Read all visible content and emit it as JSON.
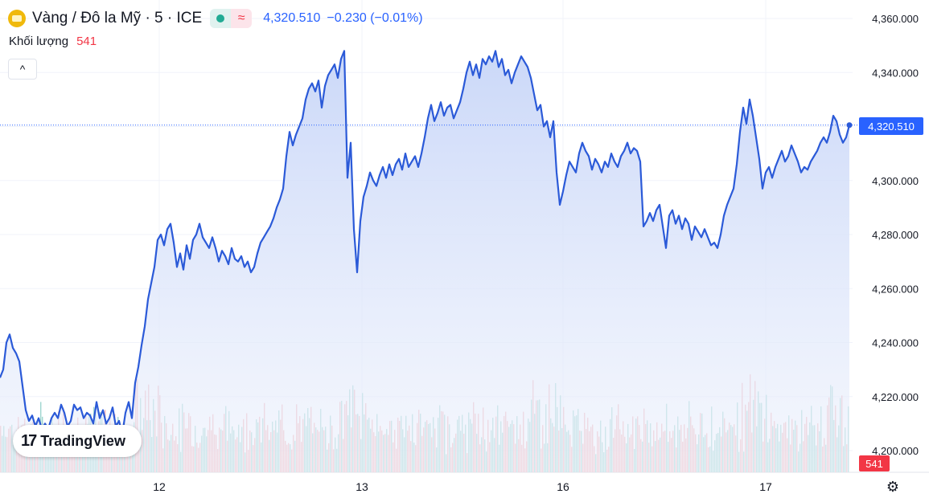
{
  "header": {
    "symbol": "Vàng / Đô la Mỹ · 5 · ICE",
    "status_approx": "≈",
    "price": "4,320.510",
    "change": "−0.230 (−0.01%)"
  },
  "volume": {
    "label": "Khối lượng",
    "value": "541"
  },
  "collapse_icon": "^",
  "logo": {
    "mark": "17",
    "brand": "TradingView"
  },
  "colors": {
    "line": "#2b5ad8",
    "fill_top": "#c9d7f7",
    "volume_up": "#8ecfc7",
    "volume_down": "#f2a7ab",
    "label_bg": "#2962ff",
    "volume_label_bg": "#f23645"
  },
  "chart_data": {
    "type": "area",
    "title": "Vàng / Đô la Mỹ · 5 · ICE",
    "x_labels": [
      "12",
      "13",
      "16",
      "17"
    ],
    "y_ticks": [
      4200,
      4220,
      4240,
      4260,
      4280,
      4300,
      4320,
      4340,
      4360
    ],
    "y_tick_labels": [
      "4,200.000",
      "4,220.000",
      "4,240.000",
      "4,260.000",
      "4,280.000",
      "4,300.000",
      "4,320.000",
      "4,340.000",
      "4,360.000"
    ],
    "ylim": [
      4195,
      4362
    ],
    "current_price": 4320.51,
    "current_price_label": "4,320.510",
    "volume_label": "541",
    "keypoints": [
      [
        0,
        4227
      ],
      [
        4,
        4230
      ],
      [
        8,
        4240
      ],
      [
        12,
        4243
      ],
      [
        16,
        4238
      ],
      [
        20,
        4236
      ],
      [
        24,
        4233
      ],
      [
        28,
        4224
      ],
      [
        32,
        4215
      ],
      [
        36,
        4211
      ],
      [
        40,
        4213
      ],
      [
        44,
        4209
      ],
      [
        48,
        4212
      ],
      [
        52,
        4208
      ],
      [
        56,
        4210
      ],
      [
        60,
        4208
      ],
      [
        64,
        4212
      ],
      [
        68,
        4214
      ],
      [
        72,
        4212
      ],
      [
        76,
        4217
      ],
      [
        80,
        4214
      ],
      [
        84,
        4209
      ],
      [
        88,
        4211
      ],
      [
        92,
        4217
      ],
      [
        96,
        4215
      ],
      [
        100,
        4216
      ],
      [
        104,
        4212
      ],
      [
        108,
        4214
      ],
      [
        112,
        4213
      ],
      [
        116,
        4210
      ],
      [
        120,
        4218
      ],
      [
        124,
        4212
      ],
      [
        128,
        4215
      ],
      [
        132,
        4210
      ],
      [
        136,
        4212
      ],
      [
        140,
        4216
      ],
      [
        144,
        4209
      ],
      [
        148,
        4211
      ],
      [
        152,
        4206
      ],
      [
        156,
        4214
      ],
      [
        160,
        4218
      ],
      [
        164,
        4212
      ],
      [
        168,
        4225
      ],
      [
        172,
        4231
      ],
      [
        176,
        4239
      ],
      [
        180,
        4246
      ],
      [
        184,
        4256
      ],
      [
        188,
        4262
      ],
      [
        192,
        4268
      ],
      [
        196,
        4278
      ],
      [
        200,
        4280
      ],
      [
        204,
        4276
      ],
      [
        208,
        4282
      ],
      [
        212,
        4284
      ],
      [
        216,
        4277
      ],
      [
        220,
        4268
      ],
      [
        224,
        4273
      ],
      [
        228,
        4267
      ],
      [
        232,
        4276
      ],
      [
        236,
        4271
      ],
      [
        240,
        4278
      ],
      [
        244,
        4280
      ],
      [
        248,
        4284
      ],
      [
        252,
        4279
      ],
      [
        256,
        4277
      ],
      [
        260,
        4275
      ],
      [
        264,
        4279
      ],
      [
        268,
        4275
      ],
      [
        272,
        4270
      ],
      [
        276,
        4274
      ],
      [
        280,
        4272
      ],
      [
        284,
        4269
      ],
      [
        288,
        4275
      ],
      [
        292,
        4271
      ],
      [
        296,
        4270
      ],
      [
        300,
        4272
      ],
      [
        304,
        4268
      ],
      [
        308,
        4270
      ],
      [
        312,
        4266
      ],
      [
        316,
        4268
      ],
      [
        320,
        4273
      ],
      [
        324,
        4277
      ],
      [
        328,
        4279
      ],
      [
        332,
        4281
      ],
      [
        336,
        4283
      ],
      [
        340,
        4286
      ],
      [
        344,
        4290
      ],
      [
        348,
        4293
      ],
      [
        352,
        4297
      ],
      [
        356,
        4309
      ],
      [
        360,
        4318
      ],
      [
        364,
        4313
      ],
      [
        368,
        4317
      ],
      [
        372,
        4320
      ],
      [
        376,
        4323
      ],
      [
        380,
        4330
      ],
      [
        384,
        4334
      ],
      [
        388,
        4336
      ],
      [
        392,
        4333
      ],
      [
        396,
        4337
      ],
      [
        400,
        4327
      ],
      [
        404,
        4335
      ],
      [
        408,
        4339
      ],
      [
        412,
        4341
      ],
      [
        416,
        4343
      ],
      [
        420,
        4338
      ],
      [
        424,
        4345
      ],
      [
        428,
        4348
      ],
      [
        432,
        4301
      ],
      [
        436,
        4314
      ],
      [
        440,
        4282
      ],
      [
        444,
        4266
      ],
      [
        448,
        4285
      ],
      [
        452,
        4294
      ],
      [
        456,
        4298
      ],
      [
        460,
        4303
      ],
      [
        464,
        4300
      ],
      [
        468,
        4298
      ],
      [
        472,
        4302
      ],
      [
        476,
        4305
      ],
      [
        480,
        4301
      ],
      [
        484,
        4306
      ],
      [
        488,
        4302
      ],
      [
        492,
        4306
      ],
      [
        496,
        4308
      ],
      [
        500,
        4304
      ],
      [
        504,
        4310
      ],
      [
        508,
        4305
      ],
      [
        512,
        4307
      ],
      [
        516,
        4309
      ],
      [
        520,
        4305
      ],
      [
        524,
        4310
      ],
      [
        528,
        4316
      ],
      [
        532,
        4323
      ],
      [
        536,
        4328
      ],
      [
        540,
        4322
      ],
      [
        544,
        4325
      ],
      [
        548,
        4329
      ],
      [
        552,
        4324
      ],
      [
        556,
        4327
      ],
      [
        560,
        4328
      ],
      [
        564,
        4323
      ],
      [
        568,
        4326
      ],
      [
        572,
        4329
      ],
      [
        576,
        4334
      ],
      [
        580,
        4340
      ],
      [
        584,
        4344
      ],
      [
        588,
        4339
      ],
      [
        592,
        4343
      ],
      [
        596,
        4338
      ],
      [
        600,
        4345
      ],
      [
        604,
        4343
      ],
      [
        608,
        4346
      ],
      [
        612,
        4344
      ],
      [
        616,
        4348
      ],
      [
        620,
        4342
      ],
      [
        624,
        4345
      ],
      [
        628,
        4339
      ],
      [
        632,
        4341
      ],
      [
        636,
        4336
      ],
      [
        640,
        4340
      ],
      [
        644,
        4343
      ],
      [
        648,
        4346
      ],
      [
        652,
        4344
      ],
      [
        656,
        4342
      ],
      [
        660,
        4338
      ],
      [
        664,
        4332
      ],
      [
        668,
        4326
      ],
      [
        672,
        4328
      ],
      [
        676,
        4320
      ],
      [
        680,
        4322
      ],
      [
        684,
        4316
      ],
      [
        688,
        4322
      ],
      [
        692,
        4303
      ],
      [
        696,
        4291
      ],
      [
        700,
        4296
      ],
      [
        704,
        4302
      ],
      [
        708,
        4307
      ],
      [
        712,
        4305
      ],
      [
        716,
        4303
      ],
      [
        720,
        4310
      ],
      [
        724,
        4314
      ],
      [
        728,
        4311
      ],
      [
        732,
        4309
      ],
      [
        736,
        4304
      ],
      [
        740,
        4308
      ],
      [
        744,
        4306
      ],
      [
        748,
        4303
      ],
      [
        752,
        4307
      ],
      [
        756,
        4305
      ],
      [
        760,
        4310
      ],
      [
        764,
        4307
      ],
      [
        768,
        4305
      ],
      [
        772,
        4309
      ],
      [
        776,
        4311
      ],
      [
        780,
        4314
      ],
      [
        784,
        4310
      ],
      [
        788,
        4312
      ],
      [
        792,
        4311
      ],
      [
        796,
        4307
      ],
      [
        800,
        4283
      ],
      [
        804,
        4285
      ],
      [
        808,
        4288
      ],
      [
        812,
        4285
      ],
      [
        816,
        4289
      ],
      [
        820,
        4291
      ],
      [
        824,
        4283
      ],
      [
        828,
        4275
      ],
      [
        832,
        4287
      ],
      [
        836,
        4289
      ],
      [
        840,
        4284
      ],
      [
        844,
        4287
      ],
      [
        848,
        4282
      ],
      [
        852,
        4286
      ],
      [
        856,
        4284
      ],
      [
        860,
        4278
      ],
      [
        864,
        4283
      ],
      [
        868,
        4281
      ],
      [
        872,
        4279
      ],
      [
        876,
        4282
      ],
      [
        880,
        4279
      ],
      [
        884,
        4276
      ],
      [
        888,
        4277
      ],
      [
        892,
        4275
      ],
      [
        896,
        4280
      ],
      [
        900,
        4287
      ],
      [
        904,
        4291
      ],
      [
        908,
        4294
      ],
      [
        912,
        4297
      ],
      [
        916,
        4306
      ],
      [
        920,
        4318
      ],
      [
        924,
        4327
      ],
      [
        928,
        4321
      ],
      [
        932,
        4330
      ],
      [
        936,
        4324
      ],
      [
        940,
        4316
      ],
      [
        944,
        4308
      ],
      [
        948,
        4297
      ],
      [
        952,
        4303
      ],
      [
        956,
        4305
      ],
      [
        960,
        4301
      ],
      [
        964,
        4305
      ],
      [
        968,
        4308
      ],
      [
        972,
        4311
      ],
      [
        976,
        4307
      ],
      [
        980,
        4309
      ],
      [
        984,
        4313
      ],
      [
        988,
        4310
      ],
      [
        992,
        4307
      ],
      [
        996,
        4303
      ],
      [
        1000,
        4305
      ],
      [
        1004,
        4304
      ],
      [
        1008,
        4307
      ],
      [
        1012,
        4309
      ],
      [
        1016,
        4311
      ],
      [
        1020,
        4314
      ],
      [
        1024,
        4316
      ],
      [
        1028,
        4314
      ],
      [
        1032,
        4318
      ],
      [
        1036,
        4324
      ],
      [
        1040,
        4322
      ],
      [
        1044,
        4317
      ],
      [
        1048,
        4314
      ],
      [
        1052,
        4316
      ],
      [
        1056,
        4320.51
      ]
    ],
    "volume_series_name": "Khối lượng"
  }
}
